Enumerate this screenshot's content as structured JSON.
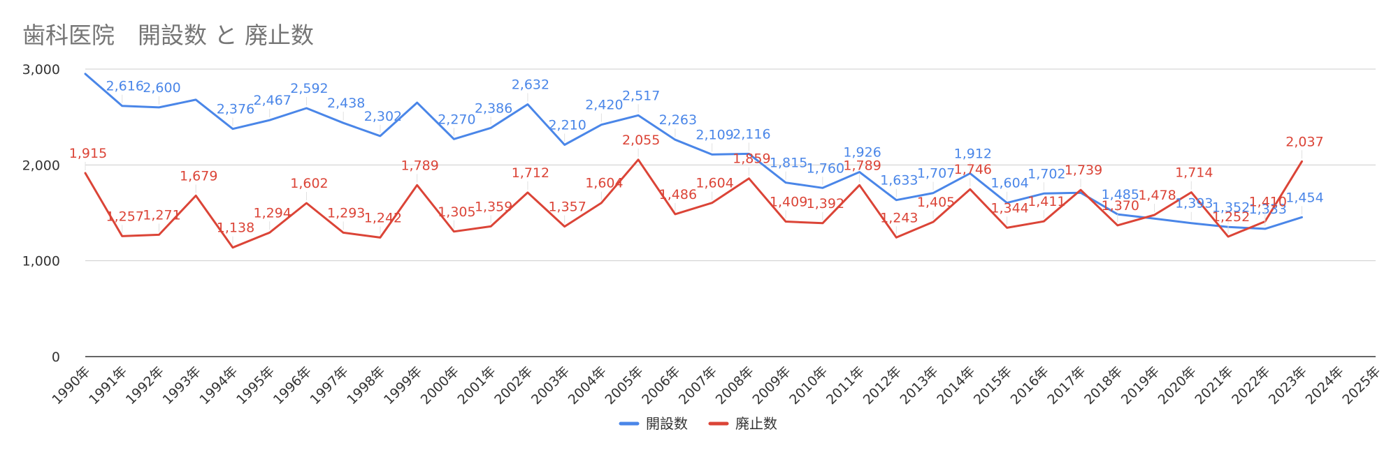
{
  "chart_data": {
    "type": "line",
    "title": "歯科医院　開設数 と 廃止数",
    "categories": [
      "1990年",
      "1991年",
      "1992年",
      "1993年",
      "1994年",
      "1995年",
      "1996年",
      "1997年",
      "1998年",
      "1999年",
      "2000年",
      "2001年",
      "2002年",
      "2003年",
      "2004年",
      "2005年",
      "2006年",
      "2007年",
      "2008年",
      "2009年",
      "2010年",
      "2011年",
      "2012年",
      "2013年",
      "2014年",
      "2015年",
      "2016年",
      "2017年",
      "2018年",
      "2019年",
      "2020年",
      "2021年",
      "2022年",
      "2023年",
      "2024年",
      "2025年"
    ],
    "series": [
      {
        "name": "開設数",
        "color": "#4a86e8",
        "values": [
          2950,
          2616,
          2600,
          2680,
          2376,
          2467,
          2592,
          2438,
          2302,
          2650,
          2270,
          2386,
          2632,
          2210,
          2420,
          2517,
          2263,
          2109,
          2116,
          1815,
          1760,
          1926,
          1633,
          1707,
          1912,
          1604,
          1702,
          1710,
          1485,
          1440,
          1393,
          1352,
          1333,
          1454,
          null,
          null
        ],
        "labels": [
          "",
          "2,616",
          "2,600",
          "",
          "2,376",
          "2,467",
          "2,592",
          "2,438",
          "2,302",
          "",
          "2,270",
          "2,386",
          "2,632",
          "2,210",
          "2,420",
          "2,517",
          "2,263",
          "2,109",
          "2,116",
          "1,815",
          "1,760",
          "1,926",
          "1,633",
          "1,707",
          "1,912",
          "1,604",
          "1,702",
          "",
          "1,485",
          "",
          "1,393",
          "1,352",
          "1,333",
          "1,454",
          "",
          ""
        ]
      },
      {
        "name": "廃止数",
        "color": "#db4437",
        "values": [
          1915,
          1257,
          1271,
          1679,
          1138,
          1294,
          1602,
          1293,
          1242,
          1789,
          1305,
          1359,
          1712,
          1357,
          1604,
          2055,
          1486,
          1604,
          1859,
          1409,
          1392,
          1789,
          1243,
          1405,
          1746,
          1344,
          1411,
          1739,
          1370,
          1478,
          1714,
          1252,
          1410,
          2037,
          null,
          null
        ],
        "labels": [
          "1,915",
          "1,257",
          "1,271",
          "1,679",
          "1,138",
          "1,294",
          "1,602",
          "1,293",
          "1,242",
          "1,789",
          "1,305",
          "1,359",
          "1,712",
          "1,357",
          "1,604",
          "2,055",
          "1,486",
          "1,604",
          "1,859",
          "1,409",
          "1,392",
          "1,789",
          "1,243",
          "1,405",
          "1,746",
          "1,344",
          "1,411",
          "1,739",
          "1,370",
          "1,478",
          "1,714",
          "1,252",
          "1,410",
          "2,037",
          "",
          ""
        ]
      }
    ],
    "yticks": [
      0,
      1000,
      2000,
      3000
    ],
    "ytick_labels": [
      "0",
      "1,000",
      "2,000",
      "3,000"
    ],
    "ylim": [
      0,
      3000
    ],
    "xlabel": "",
    "ylabel": "",
    "grid": true,
    "legend_position": "bottom"
  }
}
